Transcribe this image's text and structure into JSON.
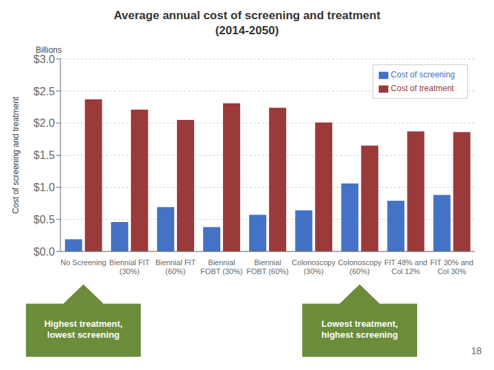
{
  "chart_data": {
    "type": "bar",
    "title": "Average annual cost of screening and treatment\n(2014-2050)",
    "ylabel": "Cost of screening and treatment",
    "categories": [
      "No Screening",
      "Biennial FIT\n(30%)",
      "Biennial FIT\n(60%)",
      "Biennial\nFOBT (30%)",
      "Biennial\nFOBT (60%)",
      "Colonoscopy\n(30%)",
      "Colonoscopy\n(60%)",
      "FIT 48% and\nCol 12%",
      "FIT 30% and\nCol 30%"
    ],
    "series": [
      {
        "name": "Cost of screening",
        "color": "#4472C4",
        "values": [
          0.19,
          0.46,
          0.69,
          0.38,
          0.57,
          0.64,
          1.06,
          0.79,
          0.88
        ]
      },
      {
        "name": "Cost of treatment",
        "color": "#9B3A3A",
        "values": [
          2.37,
          2.21,
          2.05,
          2.31,
          2.24,
          2.01,
          1.65,
          1.87,
          1.86
        ]
      }
    ],
    "ylim": [
      0.0,
      3.0
    ],
    "yticks": [
      {
        "value": 0.0,
        "label": "$0.0"
      },
      {
        "value": 0.5,
        "label": "$0.5"
      },
      {
        "value": 1.0,
        "label": "$1.0"
      },
      {
        "value": 1.5,
        "label": "$1.5"
      },
      {
        "value": 2.0,
        "label": "$2.0"
      },
      {
        "value": 2.5,
        "label": "$2.5"
      },
      {
        "value": 3.0,
        "label": "$3.0"
      }
    ],
    "grid": true,
    "legend": "upper right",
    "annotations": [
      {
        "text": "Billions"
      },
      {
        "text": "Highest treatment,\nlowest screening",
        "category": "No Screening",
        "color": "#6B8C3A"
      },
      {
        "text": "Lowest treatment,\nhighest screening",
        "category": "Colonoscopy\n(60%)",
        "color": "#6B8C3A"
      },
      {
        "text": "18"
      }
    ]
  }
}
